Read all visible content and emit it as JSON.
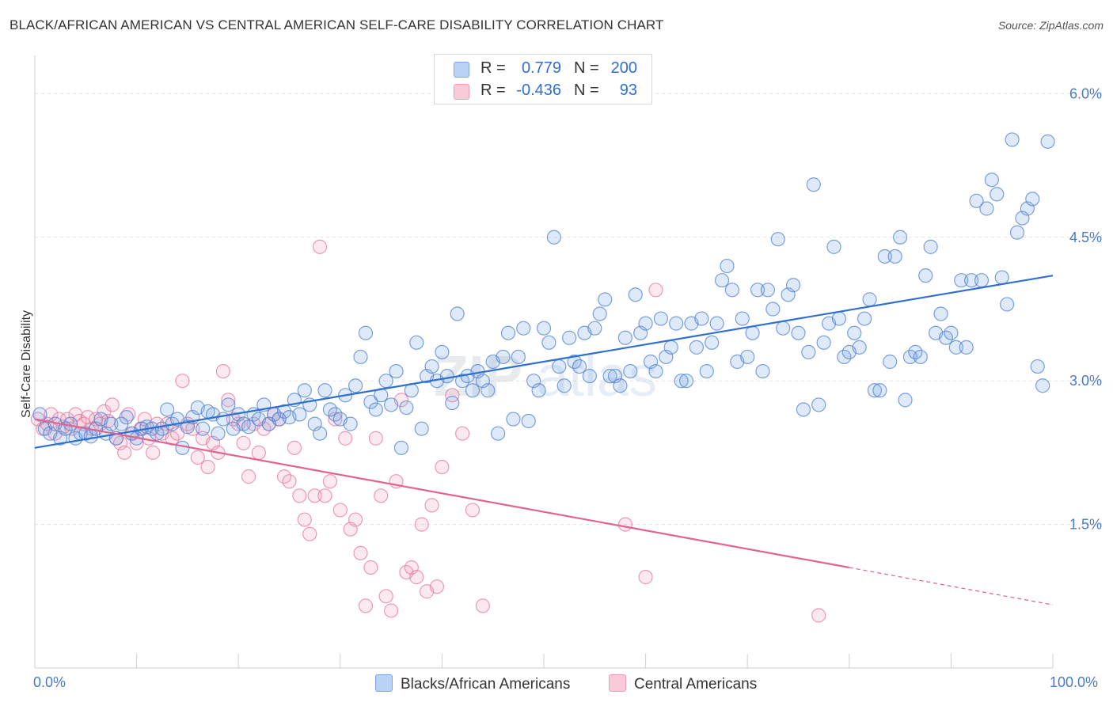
{
  "header": {
    "title": "BLACK/AFRICAN AMERICAN VS CENTRAL AMERICAN SELF-CARE DISABILITY CORRELATION CHART",
    "source": "Source: ZipAtlas.com"
  },
  "legend": {
    "rows": [
      {
        "r_label": "R =",
        "r_value": "0.779",
        "n_label": "N =",
        "n_value": "200"
      },
      {
        "r_label": "R =",
        "r_value": "-0.436",
        "n_label": "N =",
        "n_value": "93"
      }
    ]
  },
  "watermark": {
    "zip": "ZIP",
    "atlas": "atlas"
  },
  "chart_data": {
    "type": "scatter",
    "title": "BLACK/AFRICAN AMERICAN VS CENTRAL AMERICAN SELF-CARE DISABILITY CORRELATION CHART",
    "xlabel": "",
    "ylabel": "Self-Care Disability",
    "xlim": [
      0,
      100
    ],
    "ylim": [
      0,
      6.4
    ],
    "x_tick_labels": [
      "0.0%",
      "100.0%"
    ],
    "y_ticks": [
      1.5,
      3.0,
      4.5,
      6.0
    ],
    "y_tick_labels": [
      "1.5%",
      "3.0%",
      "4.5%",
      "6.0%"
    ],
    "grid": true,
    "colors": {
      "blue": "#7aa7e6",
      "blue_line": "#2f6fd0",
      "pink": "#f29bb6",
      "pink_line": "#e0648f",
      "axis_text": "#4a7ac4"
    },
    "series": [
      {
        "name": "Blacks/African Americans",
        "color": "#7aa7e6",
        "trend": {
          "x0": 0,
          "y0": 2.3,
          "x1": 100,
          "y1": 4.1
        },
        "points": [
          [
            0.5,
            2.65
          ],
          [
            1,
            2.5
          ],
          [
            1.5,
            2.45
          ],
          [
            2,
            2.55
          ],
          [
            2.5,
            2.4
          ],
          [
            3,
            2.5
          ],
          [
            3.5,
            2.55
          ],
          [
            4,
            2.4
          ],
          [
            4.5,
            2.45
          ],
          [
            5,
            2.45
          ],
          [
            5.5,
            2.42
          ],
          [
            6,
            2.5
          ],
          [
            6.5,
            2.6
          ],
          [
            7,
            2.45
          ],
          [
            7.5,
            2.55
          ],
          [
            8,
            2.4
          ],
          [
            8.5,
            2.55
          ],
          [
            9,
            2.62
          ],
          [
            9.5,
            2.45
          ],
          [
            10,
            2.4
          ],
          [
            10.5,
            2.5
          ],
          [
            11,
            2.52
          ],
          [
            11.5,
            2.5
          ],
          [
            12,
            2.45
          ],
          [
            12.5,
            2.5
          ],
          [
            13,
            2.7
          ],
          [
            13.5,
            2.55
          ],
          [
            14,
            2.6
          ],
          [
            14.5,
            2.3
          ],
          [
            15,
            2.52
          ],
          [
            15.5,
            2.62
          ],
          [
            16,
            2.72
          ],
          [
            16.5,
            2.5
          ],
          [
            17,
            2.68
          ],
          [
            17.5,
            2.65
          ],
          [
            18,
            2.45
          ],
          [
            18.5,
            2.6
          ],
          [
            19,
            2.75
          ],
          [
            19.5,
            2.5
          ],
          [
            20,
            2.65
          ],
          [
            20.5,
            2.55
          ],
          [
            21,
            2.52
          ],
          [
            21.5,
            2.65
          ],
          [
            22,
            2.6
          ],
          [
            22.5,
            2.75
          ],
          [
            23,
            2.55
          ],
          [
            23.5,
            2.65
          ],
          [
            24,
            2.6
          ],
          [
            24.5,
            2.68
          ],
          [
            25,
            2.62
          ],
          [
            25.5,
            2.8
          ],
          [
            26,
            2.65
          ],
          [
            26.5,
            2.9
          ],
          [
            27,
            2.75
          ],
          [
            27.5,
            2.55
          ],
          [
            28,
            2.45
          ],
          [
            28.5,
            2.9
          ],
          [
            29,
            2.7
          ],
          [
            29.5,
            2.65
          ],
          [
            30,
            2.6
          ],
          [
            30.5,
            2.85
          ],
          [
            31,
            2.55
          ],
          [
            31.5,
            2.95
          ],
          [
            32,
            3.25
          ],
          [
            32.5,
            3.5
          ],
          [
            33,
            2.78
          ],
          [
            33.5,
            2.7
          ],
          [
            34,
            2.85
          ],
          [
            34.5,
            3.0
          ],
          [
            35,
            2.75
          ],
          [
            35.5,
            3.1
          ],
          [
            36,
            2.3
          ],
          [
            36.5,
            2.72
          ],
          [
            37,
            2.9
          ],
          [
            37.5,
            3.4
          ],
          [
            38,
            2.5
          ],
          [
            38.5,
            3.05
          ],
          [
            39,
            3.15
          ],
          [
            39.5,
            3.0
          ],
          [
            40,
            3.3
          ],
          [
            40.5,
            3.05
          ],
          [
            41,
            2.77
          ],
          [
            41.5,
            3.7
          ],
          [
            42,
            3.0
          ],
          [
            42.5,
            3.05
          ],
          [
            43,
            2.9
          ],
          [
            43.5,
            3.1
          ],
          [
            44,
            3.0
          ],
          [
            44.5,
            2.9
          ],
          [
            45,
            3.2
          ],
          [
            45.5,
            2.45
          ],
          [
            46,
            3.25
          ],
          [
            46.5,
            3.5
          ],
          [
            47,
            2.6
          ],
          [
            47.5,
            3.25
          ],
          [
            48,
            3.55
          ],
          [
            48.5,
            2.58
          ],
          [
            49,
            3.0
          ],
          [
            49.5,
            2.9
          ],
          [
            50,
            3.55
          ],
          [
            50.5,
            3.4
          ],
          [
            51,
            4.5
          ],
          [
            51.5,
            3.15
          ],
          [
            52,
            2.95
          ],
          [
            52.5,
            3.45
          ],
          [
            53,
            3.2
          ],
          [
            53.5,
            3.15
          ],
          [
            54,
            3.5
          ],
          [
            54.5,
            3.05
          ],
          [
            55,
            3.55
          ],
          [
            55.5,
            3.7
          ],
          [
            56,
            3.85
          ],
          [
            56.5,
            3.05
          ],
          [
            57,
            3.05
          ],
          [
            57.5,
            2.95
          ],
          [
            58,
            3.45
          ],
          [
            58.5,
            3.1
          ],
          [
            59,
            3.9
          ],
          [
            59.5,
            3.5
          ],
          [
            60,
            3.6
          ],
          [
            60.5,
            3.2
          ],
          [
            61,
            3.1
          ],
          [
            61.5,
            3.65
          ],
          [
            62,
            3.25
          ],
          [
            62.5,
            3.35
          ],
          [
            63,
            3.6
          ],
          [
            63.5,
            3.0
          ],
          [
            64,
            3.0
          ],
          [
            64.5,
            3.6
          ],
          [
            65,
            3.35
          ],
          [
            65.5,
            3.65
          ],
          [
            66,
            3.1
          ],
          [
            66.5,
            3.4
          ],
          [
            67,
            3.6
          ],
          [
            67.5,
            4.05
          ],
          [
            68,
            4.2
          ],
          [
            68.5,
            3.95
          ],
          [
            69,
            3.2
          ],
          [
            69.5,
            3.65
          ],
          [
            70,
            3.25
          ],
          [
            70.5,
            3.5
          ],
          [
            71,
            3.95
          ],
          [
            71.5,
            3.1
          ],
          [
            72,
            3.95
          ],
          [
            72.5,
            3.75
          ],
          [
            73,
            4.48
          ],
          [
            73.5,
            3.55
          ],
          [
            74,
            3.9
          ],
          [
            74.5,
            4.0
          ],
          [
            75,
            3.5
          ],
          [
            75.5,
            2.7
          ],
          [
            76,
            3.3
          ],
          [
            76.5,
            5.05
          ],
          [
            77,
            2.75
          ],
          [
            77.5,
            3.4
          ],
          [
            78,
            3.6
          ],
          [
            78.5,
            4.4
          ],
          [
            79,
            3.65
          ],
          [
            79.5,
            3.25
          ],
          [
            80,
            3.3
          ],
          [
            80.5,
            3.5
          ],
          [
            81,
            3.35
          ],
          [
            81.5,
            3.65
          ],
          [
            82,
            3.85
          ],
          [
            82.5,
            2.9
          ],
          [
            83,
            2.9
          ],
          [
            83.5,
            4.3
          ],
          [
            84,
            3.2
          ],
          [
            84.5,
            4.3
          ],
          [
            85,
            4.5
          ],
          [
            85.5,
            2.8
          ],
          [
            86,
            3.25
          ],
          [
            86.5,
            3.3
          ],
          [
            87,
            3.25
          ],
          [
            87.5,
            4.1
          ],
          [
            88,
            4.4
          ],
          [
            88.5,
            3.5
          ],
          [
            89,
            3.7
          ],
          [
            89.5,
            3.45
          ],
          [
            90,
            3.5
          ],
          [
            90.5,
            3.35
          ],
          [
            91,
            4.05
          ],
          [
            91.5,
            3.35
          ],
          [
            92,
            4.05
          ],
          [
            92.5,
            4.88
          ],
          [
            93,
            4.05
          ],
          [
            93.5,
            4.8
          ],
          [
            94,
            5.1
          ],
          [
            94.5,
            4.95
          ],
          [
            95,
            4.08
          ],
          [
            95.5,
            3.8
          ],
          [
            96,
            5.52
          ],
          [
            96.5,
            4.55
          ],
          [
            97,
            4.7
          ],
          [
            97.5,
            4.8
          ],
          [
            98,
            4.9
          ],
          [
            98.5,
            3.15
          ],
          [
            99,
            2.95
          ],
          [
            99.5,
            5.5
          ]
        ]
      },
      {
        "name": "Central Americans",
        "color": "#f29bb6",
        "trend": {
          "x0": 0,
          "y0": 2.6,
          "x1": 80,
          "y1": 1.05
        },
        "trend_dashed": {
          "x0": 80,
          "y0": 1.05,
          "x1": 100,
          "y1": 0.66
        },
        "points": [
          [
            0.3,
            2.6
          ],
          [
            0.8,
            2.5
          ],
          [
            1.2,
            2.55
          ],
          [
            1.6,
            2.65
          ],
          [
            2,
            2.45
          ],
          [
            2.4,
            2.6
          ],
          [
            2.8,
            2.52
          ],
          [
            3.2,
            2.6
          ],
          [
            3.6,
            2.5
          ],
          [
            4,
            2.65
          ],
          [
            4.4,
            2.58
          ],
          [
            4.8,
            2.55
          ],
          [
            5.2,
            2.62
          ],
          [
            5.6,
            2.5
          ],
          [
            6,
            2.6
          ],
          [
            6.4,
            2.55
          ],
          [
            6.8,
            2.68
          ],
          [
            7.2,
            2.58
          ],
          [
            7.6,
            2.75
          ],
          [
            8,
            2.4
          ],
          [
            8.4,
            2.35
          ],
          [
            8.8,
            2.25
          ],
          [
            9.2,
            2.65
          ],
          [
            9.6,
            2.45
          ],
          [
            10,
            2.35
          ],
          [
            10.4,
            2.5
          ],
          [
            10.8,
            2.6
          ],
          [
            11.2,
            2.4
          ],
          [
            11.6,
            2.25
          ],
          [
            12,
            2.55
          ],
          [
            12.5,
            2.45
          ],
          [
            13,
            2.55
          ],
          [
            13.5,
            2.4
          ],
          [
            14,
            2.45
          ],
          [
            14.5,
            3.0
          ],
          [
            15,
            2.55
          ],
          [
            15.5,
            2.5
          ],
          [
            16,
            2.2
          ],
          [
            16.5,
            2.4
          ],
          [
            17,
            2.1
          ],
          [
            17.5,
            2.35
          ],
          [
            18,
            2.25
          ],
          [
            18.5,
            3.1
          ],
          [
            19,
            2.8
          ],
          [
            19.5,
            2.6
          ],
          [
            20,
            2.55
          ],
          [
            20.5,
            2.35
          ],
          [
            21,
            2.0
          ],
          [
            21.5,
            2.55
          ],
          [
            22,
            2.25
          ],
          [
            22.5,
            2.5
          ],
          [
            23,
            2.55
          ],
          [
            23.5,
            2.65
          ],
          [
            24,
            2.6
          ],
          [
            24.5,
            2.0
          ],
          [
            25,
            1.95
          ],
          [
            25.5,
            2.3
          ],
          [
            26,
            1.8
          ],
          [
            26.5,
            1.55
          ],
          [
            27,
            1.4
          ],
          [
            27.5,
            1.8
          ],
          [
            28,
            4.4
          ],
          [
            28.5,
            1.8
          ],
          [
            29,
            1.95
          ],
          [
            29.5,
            2.6
          ],
          [
            30,
            1.65
          ],
          [
            30.5,
            2.4
          ],
          [
            31,
            1.45
          ],
          [
            31.5,
            1.55
          ],
          [
            32,
            1.2
          ],
          [
            32.5,
            0.65
          ],
          [
            33,
            1.05
          ],
          [
            33.5,
            2.4
          ],
          [
            34,
            1.8
          ],
          [
            34.5,
            0.75
          ],
          [
            35,
            0.6
          ],
          [
            35.5,
            1.95
          ],
          [
            36,
            2.8
          ],
          [
            36.5,
            1.0
          ],
          [
            37,
            1.05
          ],
          [
            37.5,
            0.95
          ],
          [
            38,
            1.5
          ],
          [
            38.5,
            0.8
          ],
          [
            39,
            1.7
          ],
          [
            39.5,
            0.85
          ],
          [
            40,
            2.1
          ],
          [
            41,
            2.85
          ],
          [
            42,
            2.45
          ],
          [
            43,
            1.65
          ],
          [
            44,
            0.65
          ],
          [
            58,
            1.5
          ],
          [
            60,
            0.95
          ],
          [
            61,
            3.95
          ],
          [
            77,
            0.55
          ]
        ]
      }
    ]
  },
  "bottom_legend": {
    "blue_label": "Blacks/African Americans",
    "pink_label": "Central Americans"
  }
}
